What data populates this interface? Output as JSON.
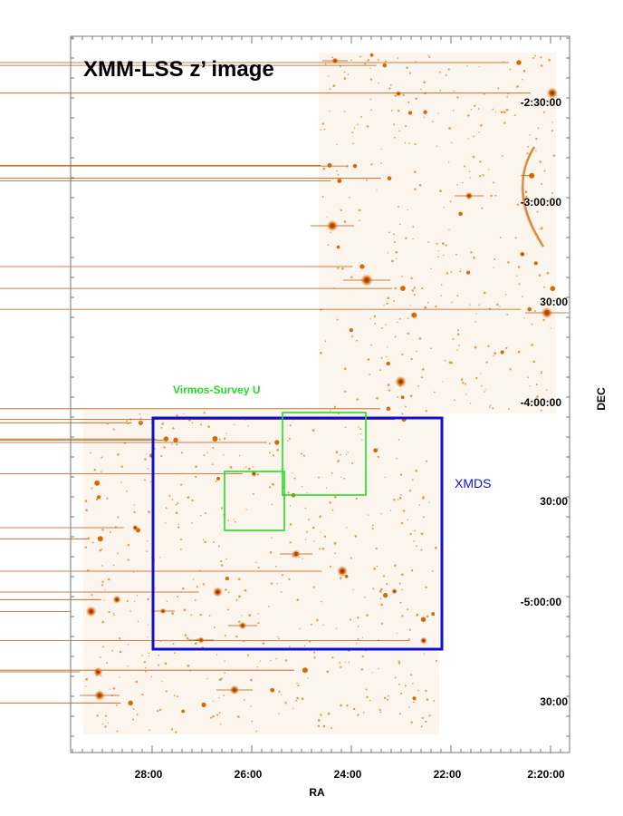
{
  "figure": {
    "title": "XMM-LSS z’ image",
    "x_axis_label": "RA",
    "y_axis_label": "DEC",
    "ra_ticks": [
      "28:00",
      "26:00",
      "24:00",
      "22:00",
      "2:20:00"
    ],
    "dec_ticks": [
      "-2:30:00",
      "-3:00:00",
      "30:00",
      "-4:00:00",
      "30:00",
      "-5:00:00",
      "30:00"
    ]
  },
  "overlays": {
    "virmos_label": "Virmos-Survey U",
    "xmds_label": "XMDS"
  },
  "colors": {
    "virmos": "#22dd22",
    "xmds": "#1010cc",
    "image_bg": "#fdf8f3",
    "star": "#d66a00"
  }
}
